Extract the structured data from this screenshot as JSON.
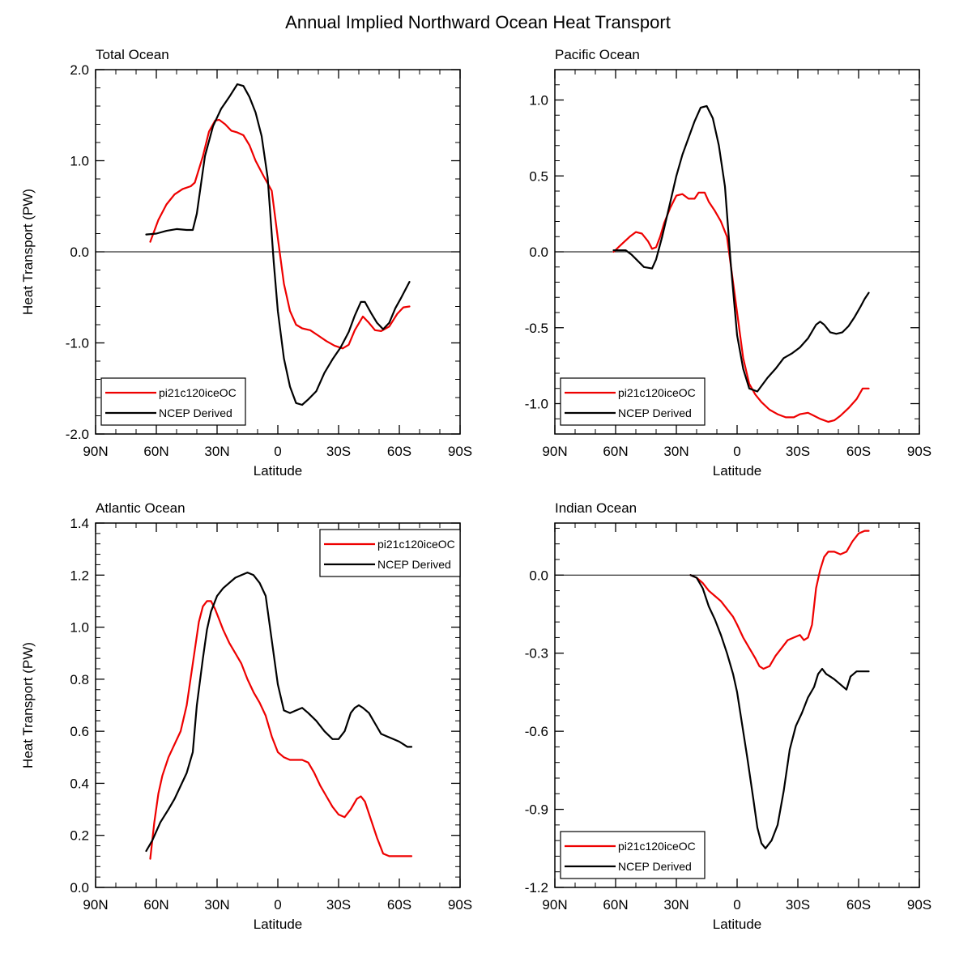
{
  "title": "Annual Implied Northward Ocean Heat Transport",
  "legend_labels": [
    "pi21c120iceOC",
    "NCEP Derived"
  ],
  "colors": {
    "model": "#ee0000",
    "obs": "#000000"
  },
  "chart_data": [
    {
      "type": "line",
      "title": "Total Ocean",
      "xlabel": "Latitude",
      "ylabel": "Heat Transport (PW)",
      "xlim": [
        -90,
        90
      ],
      "ylim": [
        -2.0,
        2.0
      ],
      "x_ticks": [
        -90,
        -60,
        -30,
        0,
        30,
        60,
        90
      ],
      "x_tick_labels": [
        "90N",
        "60N",
        "30N",
        "0",
        "30S",
        "60S",
        "90S"
      ],
      "y_ticks": [
        -2.0,
        -1.0,
        0.0,
        1.0,
        2.0
      ],
      "y_tick_labels": [
        "-2.0",
        "-1.0",
        "0.0",
        "1.0",
        "2.0"
      ],
      "legend_position": "bottom-left",
      "series": [
        {
          "name": "pi21c120iceOC",
          "x": [
            -63,
            -59,
            -55,
            -51,
            -47,
            -43,
            -41,
            -37,
            -34,
            -31,
            -29,
            -26,
            -23,
            -20,
            -17,
            -14,
            -11,
            -7,
            -3,
            0,
            3,
            6,
            9,
            12,
            16,
            20,
            24,
            28,
            32,
            35,
            38,
            42,
            45,
            48,
            51,
            55,
            59,
            62,
            65
          ],
          "values": [
            0.11,
            0.35,
            0.52,
            0.63,
            0.69,
            0.72,
            0.76,
            1.05,
            1.32,
            1.44,
            1.45,
            1.4,
            1.33,
            1.31,
            1.28,
            1.17,
            1.0,
            0.83,
            0.67,
            0.15,
            -0.35,
            -0.65,
            -0.8,
            -0.84,
            -0.86,
            -0.92,
            -0.98,
            -1.03,
            -1.06,
            -1.02,
            -0.86,
            -0.71,
            -0.78,
            -0.86,
            -0.87,
            -0.82,
            -0.68,
            -0.61,
            -0.6
          ]
        },
        {
          "name": "NCEP Derived",
          "x": [
            -65,
            -60,
            -55,
            -50,
            -45,
            -42,
            -40,
            -36,
            -32,
            -28,
            -24,
            -20,
            -17,
            -14,
            -11,
            -8,
            -5,
            -2,
            0,
            3,
            6,
            9,
            12,
            15,
            19,
            23,
            27,
            31,
            35,
            38,
            41,
            43,
            46,
            49,
            52,
            55,
            58,
            61,
            65
          ],
          "values": [
            0.19,
            0.2,
            0.23,
            0.25,
            0.24,
            0.24,
            0.42,
            1.05,
            1.38,
            1.57,
            1.7,
            1.84,
            1.82,
            1.7,
            1.53,
            1.27,
            0.81,
            -0.12,
            -0.65,
            -1.17,
            -1.48,
            -1.66,
            -1.68,
            -1.62,
            -1.53,
            -1.33,
            -1.18,
            -1.05,
            -0.88,
            -0.7,
            -0.55,
            -0.55,
            -0.67,
            -0.78,
            -0.85,
            -0.78,
            -0.62,
            -0.5,
            -0.33
          ]
        }
      ]
    },
    {
      "type": "line",
      "title": "Pacific Ocean",
      "xlabel": "Latitude",
      "ylabel": "",
      "xlim": [
        -90,
        90
      ],
      "ylim": [
        -1.2,
        1.2
      ],
      "x_ticks": [
        -90,
        -60,
        -30,
        0,
        30,
        60,
        90
      ],
      "x_tick_labels": [
        "90N",
        "60N",
        "30N",
        "0",
        "30S",
        "60S",
        "90S"
      ],
      "y_ticks": [
        -1.0,
        -0.5,
        0.0,
        0.5,
        1.0
      ],
      "y_tick_labels": [
        "-1.0",
        "-0.5",
        "0.0",
        "0.5",
        "1.0"
      ],
      "legend_position": "bottom-left",
      "series": [
        {
          "name": "pi21c120iceOC",
          "x": [
            -61,
            -57,
            -53,
            -50,
            -47,
            -44,
            -42,
            -40,
            -38,
            -36,
            -33,
            -30,
            -27,
            -24,
            -21,
            -19,
            -16,
            -14,
            -11,
            -8,
            -5,
            -3,
            0,
            3,
            6,
            9,
            12,
            16,
            20,
            24,
            28,
            31,
            35,
            38,
            41,
            45,
            48,
            51,
            55,
            59,
            62,
            65
          ],
          "values": [
            0.0,
            0.05,
            0.1,
            0.13,
            0.12,
            0.07,
            0.02,
            0.03,
            0.1,
            0.19,
            0.29,
            0.37,
            0.38,
            0.35,
            0.35,
            0.39,
            0.39,
            0.33,
            0.27,
            0.2,
            0.1,
            -0.1,
            -0.4,
            -0.7,
            -0.87,
            -0.94,
            -0.99,
            -1.04,
            -1.07,
            -1.09,
            -1.09,
            -1.07,
            -1.06,
            -1.08,
            -1.1,
            -1.12,
            -1.11,
            -1.08,
            -1.03,
            -0.97,
            -0.9,
            -0.9
          ]
        },
        {
          "name": "NCEP Derived",
          "x": [
            -61,
            -55,
            -52,
            -49,
            -46,
            -42,
            -40,
            -37,
            -34,
            -30,
            -27,
            -24,
            -21,
            -18,
            -15,
            -12,
            -9,
            -6,
            -3,
            0,
            3,
            6,
            10,
            15,
            19,
            23,
            27,
            31,
            35,
            39,
            41,
            43,
            46,
            49,
            52,
            55,
            58,
            61,
            63,
            65
          ],
          "values": [
            0.01,
            0.01,
            -0.02,
            -0.06,
            -0.1,
            -0.11,
            -0.05,
            0.1,
            0.27,
            0.5,
            0.64,
            0.75,
            0.86,
            0.95,
            0.96,
            0.88,
            0.7,
            0.43,
            -0.1,
            -0.55,
            -0.77,
            -0.9,
            -0.92,
            -0.83,
            -0.77,
            -0.7,
            -0.67,
            -0.63,
            -0.57,
            -0.48,
            -0.46,
            -0.48,
            -0.53,
            -0.54,
            -0.53,
            -0.49,
            -0.43,
            -0.36,
            -0.31,
            -0.27
          ]
        }
      ]
    },
    {
      "type": "line",
      "title": "Atlantic Ocean",
      "xlabel": "Latitude",
      "ylabel": "Heat Transport (PW)",
      "xlim": [
        -90,
        90
      ],
      "ylim": [
        0.0,
        1.4
      ],
      "x_ticks": [
        -90,
        -60,
        -30,
        0,
        30,
        60,
        90
      ],
      "x_tick_labels": [
        "90N",
        "60N",
        "30N",
        "0",
        "30S",
        "60S",
        "90S"
      ],
      "y_ticks": [
        0.0,
        0.2,
        0.4,
        0.6,
        0.8,
        1.0,
        1.2,
        1.4
      ],
      "y_tick_labels": [
        "0.0",
        "0.2",
        "0.4",
        "0.6",
        "0.8",
        "1.0",
        "1.2",
        "1.4"
      ],
      "legend_position": "top-right",
      "series": [
        {
          "name": "pi21c120iceOC",
          "x": [
            -63,
            -61,
            -59,
            -57,
            -54,
            -51,
            -48,
            -45,
            -42,
            -39,
            -37,
            -35,
            -33,
            -31,
            -29,
            -27,
            -24,
            -21,
            -18,
            -15,
            -12,
            -9,
            -6,
            -3,
            0,
            3,
            6,
            9,
            12,
            15,
            18,
            21,
            24,
            27,
            30,
            33,
            36,
            39,
            41,
            43,
            46,
            49,
            52,
            55,
            58,
            61,
            64,
            66
          ],
          "values": [
            0.11,
            0.25,
            0.36,
            0.43,
            0.5,
            0.55,
            0.6,
            0.7,
            0.86,
            1.02,
            1.08,
            1.1,
            1.1,
            1.07,
            1.03,
            0.99,
            0.94,
            0.9,
            0.86,
            0.8,
            0.75,
            0.71,
            0.66,
            0.58,
            0.52,
            0.5,
            0.49,
            0.49,
            0.49,
            0.48,
            0.44,
            0.39,
            0.35,
            0.31,
            0.28,
            0.27,
            0.3,
            0.34,
            0.35,
            0.33,
            0.26,
            0.19,
            0.13,
            0.12,
            0.12,
            0.12,
            0.12,
            0.12
          ]
        },
        {
          "name": "NCEP Derived",
          "x": [
            -65,
            -62,
            -58,
            -54,
            -51,
            -48,
            -45,
            -42,
            -40,
            -37,
            -35,
            -33,
            -30,
            -27,
            -24,
            -21,
            -18,
            -15,
            -12,
            -9,
            -6,
            -3,
            0,
            3,
            6,
            9,
            12,
            15,
            19,
            23,
            27,
            30,
            33,
            36,
            38,
            40,
            42,
            45,
            48,
            51,
            54,
            57,
            60,
            62,
            64,
            66
          ],
          "values": [
            0.14,
            0.18,
            0.25,
            0.3,
            0.34,
            0.39,
            0.44,
            0.52,
            0.7,
            0.88,
            0.99,
            1.06,
            1.12,
            1.15,
            1.17,
            1.19,
            1.2,
            1.21,
            1.2,
            1.17,
            1.12,
            0.95,
            0.78,
            0.68,
            0.67,
            0.68,
            0.69,
            0.67,
            0.64,
            0.6,
            0.57,
            0.57,
            0.6,
            0.67,
            0.69,
            0.7,
            0.69,
            0.67,
            0.63,
            0.59,
            0.58,
            0.57,
            0.56,
            0.55,
            0.54,
            0.54
          ]
        }
      ]
    },
    {
      "type": "line",
      "title": "Indian Ocean",
      "xlabel": "Latitude",
      "ylabel": "",
      "xlim": [
        -90,
        90
      ],
      "ylim": [
        -1.2,
        0.2
      ],
      "x_ticks": [
        -90,
        -60,
        -30,
        0,
        30,
        60,
        90
      ],
      "x_tick_labels": [
        "90N",
        "60N",
        "30N",
        "0",
        "30S",
        "60S",
        "90S"
      ],
      "y_ticks": [
        -1.2,
        -0.9,
        -0.6,
        -0.3,
        0.0
      ],
      "y_tick_labels": [
        "-1.2",
        "-0.9",
        "-0.6",
        "-0.3",
        "0.0"
      ],
      "legend_position": "bottom-left",
      "series": [
        {
          "name": "pi21c120iceOC",
          "x": [
            -23,
            -20,
            -17,
            -14,
            -11,
            -8,
            -5,
            -2,
            0,
            3,
            6,
            9,
            11,
            13,
            16,
            19,
            22,
            25,
            28,
            31,
            33,
            35,
            37,
            39,
            41,
            43,
            45,
            48,
            51,
            54,
            57,
            60,
            63,
            65
          ],
          "values": [
            0.0,
            -0.01,
            -0.03,
            -0.06,
            -0.08,
            -0.1,
            -0.13,
            -0.16,
            -0.19,
            -0.24,
            -0.28,
            -0.32,
            -0.35,
            -0.36,
            -0.35,
            -0.31,
            -0.28,
            -0.25,
            -0.24,
            -0.23,
            -0.25,
            -0.24,
            -0.19,
            -0.05,
            0.02,
            0.07,
            0.09,
            0.09,
            0.08,
            0.09,
            0.13,
            0.16,
            0.17,
            0.17
          ]
        },
        {
          "name": "NCEP Derived",
          "x": [
            -23,
            -20,
            -17,
            -14,
            -11,
            -8,
            -5,
            -2,
            0,
            2,
            5,
            8,
            10,
            12,
            14,
            17,
            20,
            23,
            26,
            29,
            32,
            35,
            38,
            40,
            42,
            44,
            46,
            48,
            51,
            54,
            56,
            59,
            62,
            65
          ],
          "values": [
            0.0,
            -0.01,
            -0.05,
            -0.12,
            -0.17,
            -0.23,
            -0.3,
            -0.38,
            -0.45,
            -0.55,
            -0.7,
            -0.86,
            -0.97,
            -1.03,
            -1.05,
            -1.02,
            -0.96,
            -0.83,
            -0.67,
            -0.58,
            -0.53,
            -0.47,
            -0.43,
            -0.38,
            -0.36,
            -0.38,
            -0.39,
            -0.4,
            -0.42,
            -0.44,
            -0.39,
            -0.37,
            -0.37,
            -0.37
          ]
        }
      ]
    }
  ]
}
